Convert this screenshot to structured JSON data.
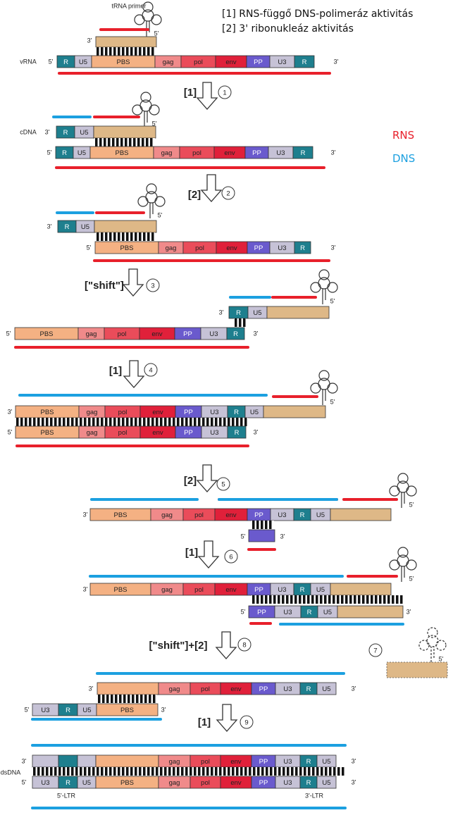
{
  "legend": {
    "line1": "[1] RNS-függő DNS-polimeráz aktivitás",
    "line2": "[2] 3' ribonukleáz aktivitás",
    "rns": "RNS",
    "dns": "DNS"
  },
  "labels": {
    "trna_primer": "tRNA primer",
    "vrna": "vRNA",
    "cdna": "cDNA",
    "dsdna": "dsDNA",
    "ltr5": "5'-LTR",
    "ltr3": "3'-LTR",
    "end5": "5'",
    "end3": "3'"
  },
  "segments": {
    "R": "R",
    "U5": "U5",
    "PBS": "PBS",
    "gag": "gag",
    "pol": "pol",
    "env": "env",
    "PP": "PP",
    "U3": "U3"
  },
  "steps": [
    {
      "label": "[1]",
      "num": "1"
    },
    {
      "label": "[2]",
      "num": "2"
    },
    {
      "label": "[\"shift\"]",
      "num": "3"
    },
    {
      "label": "[1]",
      "num": "4"
    },
    {
      "label": "[2]",
      "num": "5"
    },
    {
      "label": "[1]",
      "num": "6"
    },
    {
      "label": "",
      "num": "7"
    },
    {
      "label": "[\"shift\"]+[2]",
      "num": "8"
    },
    {
      "label": "[1]",
      "num": "9"
    }
  ],
  "colors": {
    "rna": "#e8202b",
    "dna": "#1ca0e0",
    "R": "#1e7f8e",
    "U5": "#c6c2d6",
    "PBS": "#f4b183",
    "gag": "#f08a8a",
    "pol": "#ea4c5a",
    "env": "#e0203a",
    "PP": "#6a5acd",
    "U3": "#c6c2d6",
    "primer": "#deb887"
  }
}
